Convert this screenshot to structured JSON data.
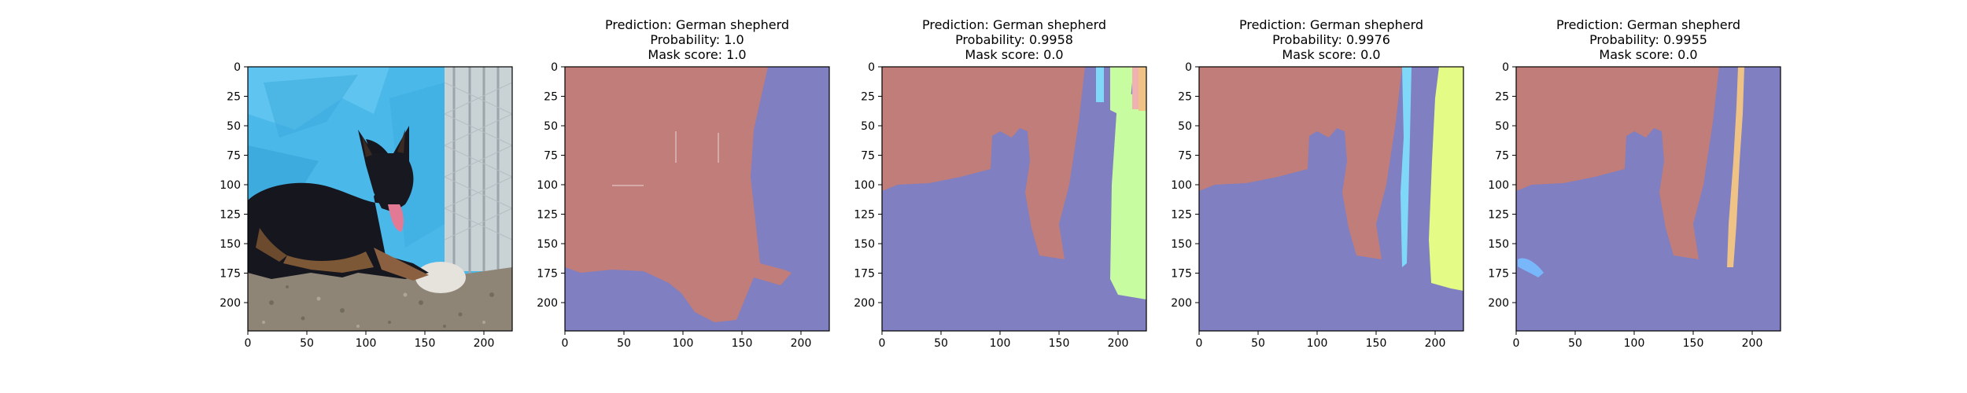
{
  "figure": {
    "panels": [
      {
        "id": "original",
        "kind": "photo",
        "title_lines": [],
        "image_description": "German shepherd dog lying on gravel in front of a blue tarp and a chain-link fence"
      },
      {
        "id": "mask-1",
        "kind": "segmentation-mask",
        "title_lines": [
          "Prediction: German shepherd",
          "Probability: 1.0",
          "Mask score: 1.0"
        ]
      },
      {
        "id": "mask-2",
        "kind": "segmentation-mask",
        "title_lines": [
          "Prediction: German shepherd",
          "Probability: 0.9958",
          "Mask score: 0.0"
        ]
      },
      {
        "id": "mask-3",
        "kind": "segmentation-mask",
        "title_lines": [
          "Prediction: German shepherd",
          "Probability: 0.9976",
          "Mask score: 0.0"
        ]
      },
      {
        "id": "mask-4",
        "kind": "segmentation-mask",
        "title_lines": [
          "Prediction: German shepherd",
          "Probability: 0.9955",
          "Mask score: 0.0"
        ]
      }
    ],
    "axes": {
      "x_ticks": [
        "0",
        "50",
        "100",
        "150",
        "200"
      ],
      "y_ticks": [
        "0",
        "25",
        "50",
        "75",
        "100",
        "125",
        "150",
        "175",
        "200"
      ]
    },
    "colors": {
      "mask_red": "#c17d79",
      "mask_blue": "#7f7fc1",
      "mask_green": "#c8fca1",
      "mask_cyan": "#7fd8f8",
      "mask_yellow": "#e4fb86",
      "mask_orange": "#efc385",
      "mask_lightblue": "#79b7fb",
      "mask_pink": "#f0b1b1"
    }
  }
}
